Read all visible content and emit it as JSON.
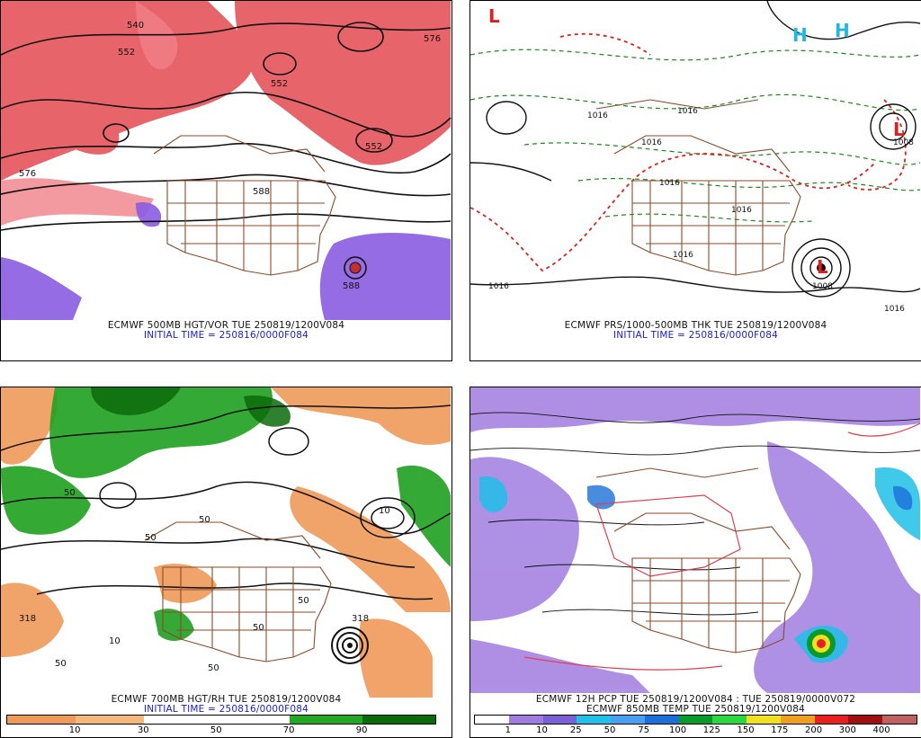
{
  "panels": {
    "top_left": {
      "caption_line1": "ECMWF 500MB HGT/VOR TUE 250819/1200V084",
      "caption_line2": "INITIAL TIME = 250816/0000F084",
      "contour_labels": [
        "552",
        "552",
        "552",
        "576",
        "588",
        "588",
        "540",
        "576"
      ]
    },
    "top_right": {
      "caption_line1": "ECMWF PRS/1000-500MB THK TUE 250819/1200V084",
      "caption_line2": "INITIAL TIME = 250816/0000F084",
      "contour_labels": [
        "1016",
        "1016",
        "1016",
        "1016",
        "1016",
        "1016",
        "1008",
        "1016",
        "1008",
        "1016"
      ],
      "low_symbol": "L",
      "high_symbol": "H"
    },
    "bottom_left": {
      "caption_line1": "ECMWF 700MB HGT/RH TUE 250819/1200V084",
      "caption_line2": "INITIAL TIME = 250816/0000F084",
      "contour_labels": [
        "50",
        "50",
        "50",
        "10",
        "50",
        "10",
        "50",
        "50",
        "318",
        "318",
        "50"
      ],
      "colorbar_labels": [
        "10",
        "30",
        "50",
        "70",
        "90"
      ],
      "colorbar_colors": [
        "#f0a868",
        "#f4b87a",
        "#ffffff",
        "#ffffff",
        "#22a822",
        "#0b6b0b"
      ]
    },
    "bottom_right": {
      "caption_line1": "ECMWF 12H PCP TUE 250819/1200V084 : TUE 250819/0000V072",
      "caption_line2": "ECMWF 850MB TEMP TUE 250819/1200V084",
      "colorbar_labels": [
        "1",
        "10",
        "25",
        "50",
        "75",
        "100",
        "125",
        "150",
        "175",
        "200",
        "300",
        "400"
      ],
      "colorbar_colors": [
        "#ffffff",
        "#a07ce0",
        "#7a5fd6",
        "#20c0e8",
        "#4a9ef0",
        "#1a6fd8",
        "#0a9a2a",
        "#2ad840",
        "#f0e020",
        "#f0a020",
        "#e82020",
        "#a01010",
        "#c06060"
      ]
    }
  },
  "colors": {
    "vorticity_red": "#e0303a",
    "vorticity_purple": "#8a5ce0",
    "contour_black": "#111111",
    "thickness_green": "#1a8a1a",
    "thickness_red": "#e02020",
    "border_brown": "#8b4a2a",
    "rh_green": "#1fa01f",
    "rh_orange": "#f09a5a",
    "caption_blue": "#1a22c8"
  }
}
